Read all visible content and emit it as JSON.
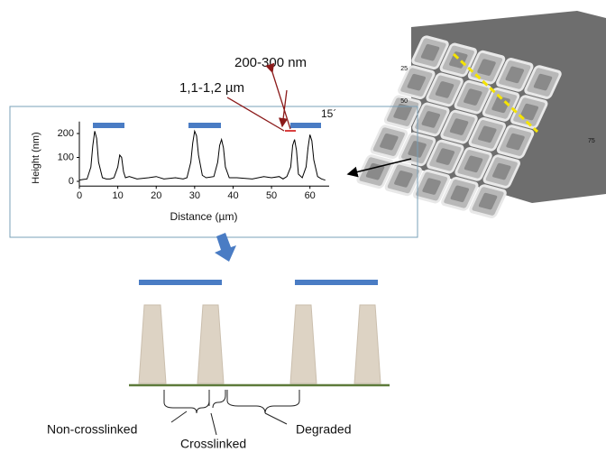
{
  "annotations": {
    "period": "200-300 nm",
    "width": "1,1-1,2 µm",
    "time": "15´"
  },
  "plot": {
    "type": "line",
    "x_label": "Distance (µm)",
    "y_label": "Height (nm)",
    "x": [
      0,
      1,
      2,
      3,
      3.5,
      4,
      4.5,
      5,
      6,
      7,
      8,
      9,
      10,
      10.5,
      11,
      11.5,
      12,
      13,
      15,
      18,
      20,
      22,
      25,
      27,
      28,
      29,
      29.5,
      30,
      30.5,
      31,
      32,
      33,
      35,
      36,
      36.5,
      37,
      37.5,
      38,
      39,
      41,
      45,
      48,
      50,
      52,
      53,
      54,
      55,
      55.5,
      56,
      56.5,
      57,
      58,
      59,
      59.5,
      60,
      60.5,
      61,
      62,
      63,
      64
    ],
    "values": [
      5,
      8,
      10,
      60,
      150,
      210,
      180,
      80,
      15,
      10,
      10,
      15,
      60,
      110,
      100,
      40,
      15,
      20,
      10,
      15,
      20,
      10,
      15,
      10,
      15,
      80,
      160,
      210,
      190,
      110,
      25,
      15,
      20,
      80,
      150,
      175,
      140,
      60,
      15,
      15,
      10,
      20,
      15,
      20,
      10,
      20,
      60,
      150,
      175,
      130,
      30,
      15,
      60,
      140,
      195,
      170,
      90,
      20,
      10,
      5
    ],
    "color": "#000000",
    "xlim": [
      0,
      65
    ],
    "ylim": [
      -20,
      250
    ],
    "xticks": [
      0,
      10,
      20,
      30,
      40,
      50,
      60
    ],
    "yticks": [
      0,
      100,
      200
    ]
  },
  "afm": {
    "axis_labels": [
      "25",
      "50",
      "75"
    ]
  },
  "scheme": {
    "labels": {
      "left": "Non-crosslinked",
      "middle": "Crosslinked",
      "right": "Degraded"
    }
  }
}
